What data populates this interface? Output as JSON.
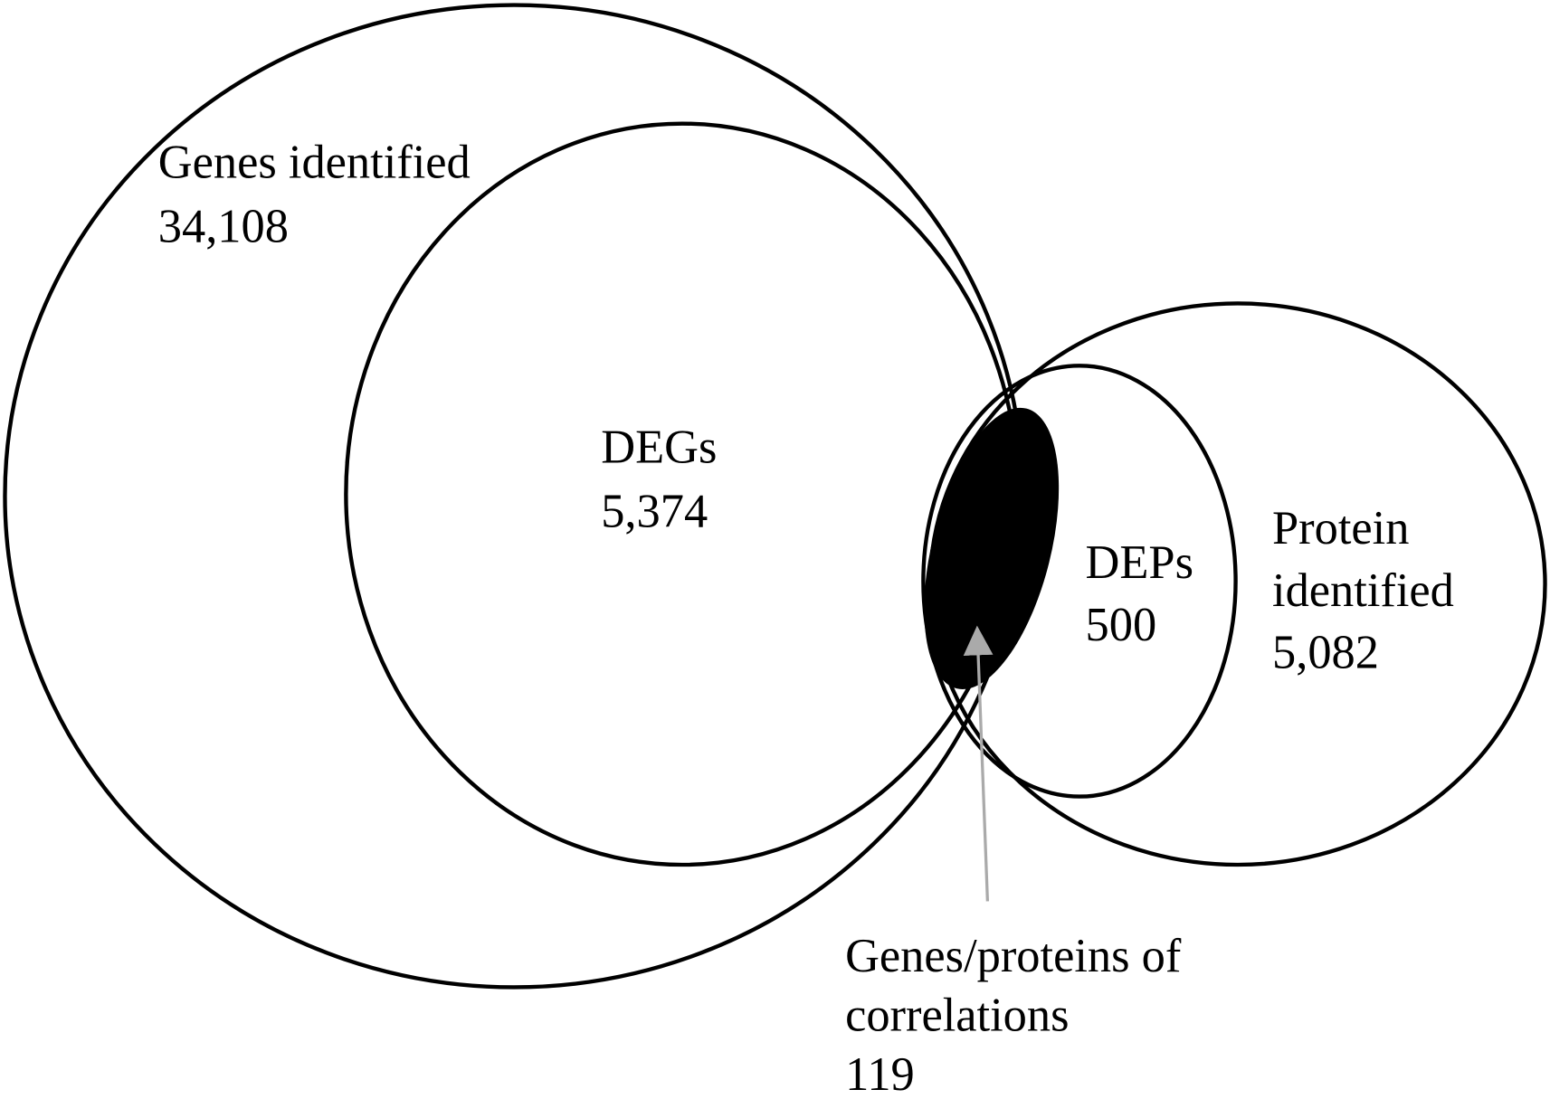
{
  "sets": [
    {
      "label": [
        "Genes identified"
      ],
      "count": "34,108"
    },
    {
      "label": [
        "DEGs"
      ],
      "count": "5,374"
    },
    {
      "label": [
        "DEPs"
      ],
      "count": "500"
    },
    {
      "label": [
        "Protein",
        "identified"
      ],
      "count": "5,082"
    }
  ],
  "intersection": {
    "label": [
      "Genes/proteins of",
      "correlations"
    ],
    "count": "119"
  }
}
